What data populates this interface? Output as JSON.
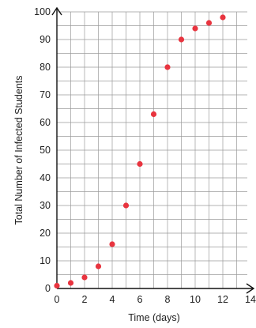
{
  "chart_data": {
    "type": "scatter",
    "title": "",
    "xlabel": "Time (days)",
    "ylabel": "Total Number of Infected Students",
    "xlim": [
      0,
      14
    ],
    "ylim": [
      0,
      100
    ],
    "x_ticks": [
      0,
      2,
      4,
      6,
      8,
      10,
      12,
      14
    ],
    "y_ticks": [
      0,
      10,
      20,
      30,
      40,
      50,
      60,
      70,
      80,
      90,
      100
    ],
    "minor_grid_step": {
      "x": 1,
      "y": 5
    },
    "grid": true,
    "axis_arrows": true,
    "point_color": "#e8343f",
    "series": [
      {
        "x": [
          0,
          1,
          2,
          3,
          4,
          5,
          6,
          7,
          8,
          9,
          10,
          11,
          12
        ],
        "y": [
          1,
          2,
          4,
          8,
          16,
          30,
          45,
          63,
          80,
          90,
          94,
          96,
          98
        ]
      }
    ]
  }
}
